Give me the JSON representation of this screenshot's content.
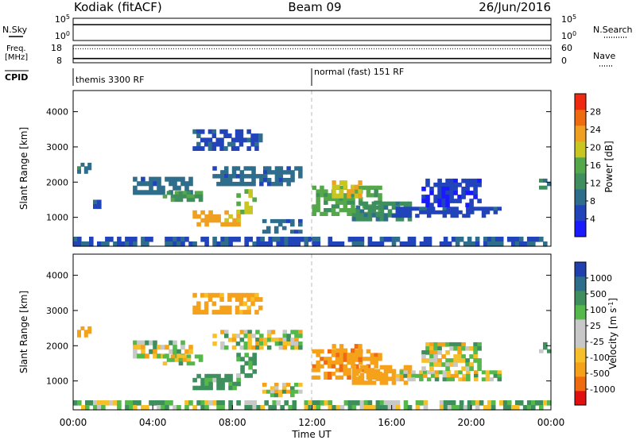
{
  "header": {
    "station": "Kodiak (fitACF)",
    "beam": "Beam 09",
    "date": "26/Jun/2016"
  },
  "colors": {
    "power_scale": [
      "#1a1aff",
      "#2244bb",
      "#2e6e8c",
      "#3f8f5e",
      "#55a84a",
      "#c9c622",
      "#f0a020",
      "#f06a10",
      "#f02a10"
    ],
    "velocity_scale": [
      "#e01010",
      "#f06a10",
      "#f5a21a",
      "#f7c02a",
      "#c8c8c8",
      "#c8c8c8",
      "#55b84a",
      "#3f8f5e",
      "#2e6e8c",
      "#2040b0"
    ]
  },
  "chart_data": [
    {
      "type": "line",
      "panel": "noise",
      "left_label": "N.Sky",
      "right_label": "N.Search",
      "left_ticks": [
        "10^5",
        "10^0"
      ],
      "right_ticks": [
        "10^5",
        "10^0"
      ],
      "x_range_hours": [
        0,
        24
      ],
      "series": [
        {
          "name": "N.Sky",
          "style": "solid",
          "values": [
            5,
            5,
            5,
            5,
            5,
            5,
            5,
            5,
            5,
            5,
            5,
            5,
            5,
            5,
            5,
            5,
            5,
            5,
            5,
            5,
            5,
            5,
            5,
            5,
            5
          ]
        },
        {
          "name": "N.Search",
          "style": "dotted",
          "values": [
            5,
            5,
            5,
            5,
            5,
            5,
            5,
            5,
            5,
            5,
            5,
            5,
            5,
            5,
            5,
            5,
            5,
            5,
            5,
            5,
            5,
            5,
            5,
            5,
            5
          ]
        }
      ]
    },
    {
      "type": "line",
      "panel": "frequency",
      "left_label_1": "Freq.",
      "left_label_2": "[MHz]",
      "right_label": "Nave",
      "left_ticks": [
        "18",
        "8"
      ],
      "right_ticks": [
        "60",
        "0"
      ],
      "ylim": [
        8,
        18
      ],
      "x_range_hours": [
        0,
        24
      ],
      "series": [
        {
          "name": "Freq.",
          "style": "solid",
          "values": [
            10.4,
            10.4,
            10.4,
            10.4,
            10.4,
            10.4,
            10.4,
            10.4,
            10.4,
            10.4,
            10.4,
            10.4,
            10.4,
            10.4,
            10.4,
            10.4,
            10.4,
            10.4,
            10.4,
            10.4,
            10.4,
            10.4,
            10.4,
            10.4,
            10.4
          ]
        },
        {
          "name": "Nave",
          "style": "dotted",
          "values": [
            16,
            16,
            16,
            16,
            16,
            16,
            16,
            16,
            16,
            16,
            16,
            16,
            16,
            16,
            16,
            16,
            16,
            16,
            16,
            16,
            16,
            16,
            16,
            16,
            16
          ]
        }
      ]
    },
    {
      "type": "table",
      "panel": "cpid",
      "label": "CPID",
      "modes": [
        {
          "start_hour": 0,
          "text": "themis 3300 RF"
        },
        {
          "start_hour": 12,
          "text": "normal (fast) 151 RF"
        }
      ]
    },
    {
      "type": "heatmap",
      "panel": "power",
      "ylabel": "Slant Range [km]",
      "ylim": [
        180,
        4600
      ],
      "yticks": [
        1000,
        2000,
        3000,
        4000
      ],
      "xlim_hours": [
        0,
        24
      ],
      "colorbar_label": "Power [dB]",
      "colorbar_ticks": [
        "4",
        "8",
        "12",
        "16",
        "20",
        "24",
        "28"
      ],
      "colorbar_range": [
        0,
        30
      ],
      "mode_change_hour": 12,
      "features": [
        {
          "t0": 0.2,
          "t1": 0.9,
          "r0": 2250,
          "r1": 2550,
          "value": 9
        },
        {
          "t0": 1.0,
          "t1": 1.4,
          "r0": 1250,
          "r1": 1500,
          "value": 6
        },
        {
          "t0": 3.0,
          "t1": 6.0,
          "r0": 1650,
          "r1": 2150,
          "value": 8
        },
        {
          "t0": 4.5,
          "t1": 6.5,
          "r0": 1450,
          "r1": 1750,
          "value": 13
        },
        {
          "t0": 6.0,
          "t1": 8.4,
          "r0": 750,
          "r1": 1200,
          "value": 21
        },
        {
          "t0": 8.2,
          "t1": 9.2,
          "r0": 1100,
          "r1": 1800,
          "value": 17
        },
        {
          "t0": 7.0,
          "t1": 11.5,
          "r0": 1900,
          "r1": 2450,
          "value": 8
        },
        {
          "t0": 9.5,
          "t1": 11.5,
          "r0": 550,
          "r1": 950,
          "value": 8
        },
        {
          "t0": 6.0,
          "t1": 9.5,
          "r0": 2900,
          "r1": 3500,
          "value": 6
        },
        {
          "t0": 12.0,
          "t1": 15.5,
          "r0": 1050,
          "r1": 1900,
          "value": 14
        },
        {
          "t0": 13.0,
          "t1": 14.5,
          "r0": 1550,
          "r1": 2050,
          "value": 19
        },
        {
          "t0": 14.0,
          "t1": 17.0,
          "r0": 900,
          "r1": 1450,
          "value": 11
        },
        {
          "t0": 16.0,
          "t1": 21.5,
          "r0": 1000,
          "r1": 1300,
          "value": 5
        },
        {
          "t0": 17.5,
          "t1": 20.5,
          "r0": 1300,
          "r1": 2100,
          "value": 4
        },
        {
          "t0": 23.4,
          "t1": 24.0,
          "r0": 1800,
          "r1": 2100,
          "value": 10
        },
        {
          "t0": 0.0,
          "t1": 24.0,
          "r0": 180,
          "r1": 450,
          "value": 6
        }
      ]
    },
    {
      "type": "heatmap",
      "panel": "velocity",
      "ylabel": "Slant Range [km]",
      "ylim": [
        180,
        4600
      ],
      "yticks": [
        1000,
        2000,
        3000,
        4000
      ],
      "xlim_hours": [
        0,
        24
      ],
      "xlabel": "Time UT",
      "xtick_labels": [
        "00:00",
        "04:00",
        "08:00",
        "12:00",
        "16:00",
        "20:00",
        "00:00"
      ],
      "colorbar_label": "Velocity [m s^-1]",
      "colorbar_ticks": [
        "-1000",
        "-500",
        "-100",
        "-25",
        "25",
        "100",
        "500",
        "1000"
      ],
      "colorbar_range": [
        -1250,
        1250
      ],
      "mode_change_hour": 12,
      "features": [
        {
          "t0": 0.2,
          "t1": 0.9,
          "r0": 2250,
          "r1": 2550,
          "value": -300
        },
        {
          "t0": 3.0,
          "t1": 6.0,
          "r0": 1650,
          "r1": 2150,
          "value": 0
        },
        {
          "t0": 4.5,
          "t1": 6.5,
          "r0": 1450,
          "r1": 1750,
          "value": 0
        },
        {
          "t0": 6.0,
          "t1": 8.4,
          "r0": 750,
          "r1": 1200,
          "value": 150
        },
        {
          "t0": 8.2,
          "t1": 9.2,
          "r0": 1100,
          "r1": 1800,
          "value": 80
        },
        {
          "t0": 7.0,
          "t1": 11.5,
          "r0": 1900,
          "r1": 2450,
          "value": 0
        },
        {
          "t0": 9.5,
          "t1": 11.5,
          "r0": 550,
          "r1": 950,
          "value": 0
        },
        {
          "t0": 6.0,
          "t1": 9.5,
          "r0": 2900,
          "r1": 3500,
          "value": -200
        },
        {
          "t0": 12.0,
          "t1": 15.5,
          "r0": 1050,
          "r1": 1900,
          "value": -400
        },
        {
          "t0": 13.0,
          "t1": 14.5,
          "r0": 1550,
          "r1": 2050,
          "value": -500
        },
        {
          "t0": 14.0,
          "t1": 17.0,
          "r0": 900,
          "r1": 1450,
          "value": -300
        },
        {
          "t0": 16.0,
          "t1": 21.5,
          "r0": 1000,
          "r1": 1300,
          "value": 0
        },
        {
          "t0": 17.5,
          "t1": 20.5,
          "r0": 1300,
          "r1": 2100,
          "value": 0
        },
        {
          "t0": 23.4,
          "t1": 24.0,
          "r0": 1800,
          "r1": 2100,
          "value": 80
        },
        {
          "t0": 0.0,
          "t1": 24.0,
          "r0": 180,
          "r1": 450,
          "value": 60
        }
      ]
    }
  ]
}
